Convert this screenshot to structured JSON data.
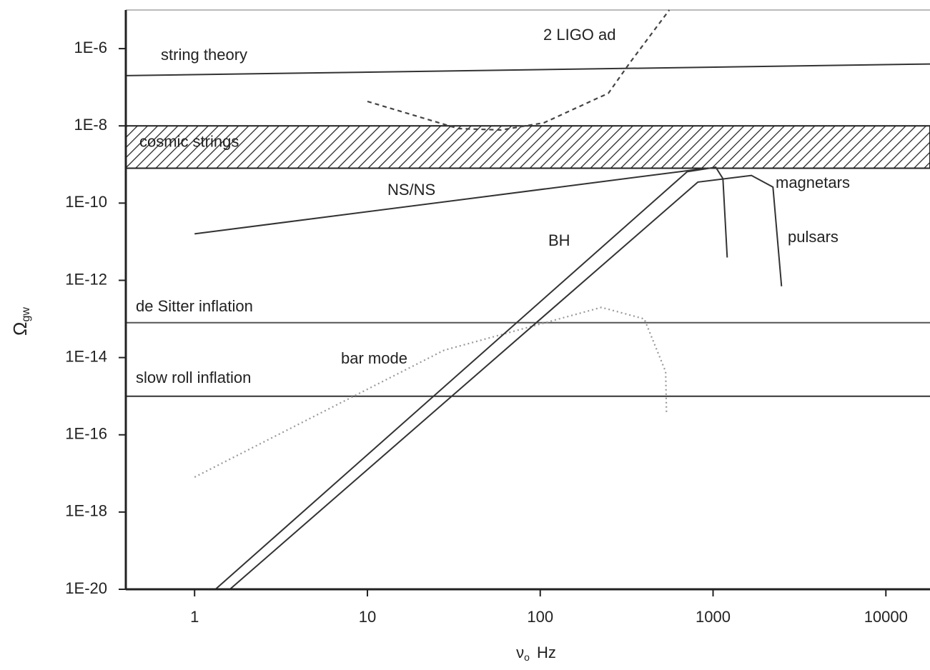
{
  "chart_data": {
    "type": "line",
    "log_x": true,
    "log_y": true,
    "xlabel": {
      "symbol": "ν",
      "subscript": "o",
      "unit": "Hz"
    },
    "ylabel": {
      "symbol": "Ω",
      "subscript": "gw"
    },
    "xlim": [
      0.4,
      18000
    ],
    "ylim": [
      1e-20,
      1e-05
    ],
    "xticks": [
      1,
      10,
      100,
      1000,
      10000
    ],
    "yticks": [
      {
        "value": 1e-20,
        "label": "1E-20"
      },
      {
        "value": 1e-18,
        "label": "1E-18"
      },
      {
        "value": 1e-16,
        "label": "1E-16"
      },
      {
        "value": 1e-14,
        "label": "1E-14"
      },
      {
        "value": 1e-12,
        "label": "1E-12"
      },
      {
        "value": 1e-10,
        "label": "1E-10"
      },
      {
        "value": 1e-08,
        "label": "1E-8"
      },
      {
        "value": 1e-06,
        "label": "1E-6"
      }
    ],
    "bands": [
      {
        "name": "cosmic strings",
        "y": [
          8e-10,
          1e-08
        ],
        "color": "#222222"
      }
    ],
    "series": [
      {
        "name": "string theory",
        "color": "#333333",
        "style": "solid",
        "x": [
          0.4,
          18000
        ],
        "values": [
          2e-07,
          4e-07
        ]
      },
      {
        "name": "2 LIGO ad",
        "color": "#444444",
        "style": "dashed",
        "x": [
          10,
          33.6,
          59.5,
          105,
          248,
          330,
          558
        ],
        "values": [
          4.3e-08,
          8.5e-09,
          7.8e-09,
          1.2e-08,
          7e-08,
          4.3e-07,
          1e-05
        ]
      },
      {
        "name": "NS/NS",
        "color": "#333333",
        "style": "solid",
        "x": [
          1,
          940
        ],
        "values": [
          1.6e-11,
          8.1e-10
        ]
      },
      {
        "name": "de Sitter inflation",
        "color": "#555555",
        "style": "solid",
        "x": [
          0.4,
          18000
        ],
        "values": [
          8e-14,
          8e-14
        ]
      },
      {
        "name": "slow roll inflation",
        "color": "#333333",
        "style": "solid",
        "x": [
          0.4,
          18000
        ],
        "values": [
          1e-15,
          1e-15
        ]
      },
      {
        "name": "bar mode",
        "color": "#999999",
        "style": "dotted",
        "x": [
          1,
          27.8,
          226,
          400,
          532,
          538
        ],
        "values": [
          8e-18,
          1.55e-14,
          2e-13,
          1e-13,
          4.3e-15,
          3.3e-16
        ]
      },
      {
        "color": "#333333",
        "style": "solid",
        "x": [
          1.32,
          708,
          1037,
          1140,
          1207
        ],
        "values": [
          1e-20,
          6.5e-10,
          8.5e-10,
          4.3e-10,
          3.9e-12
        ]
      },
      {
        "color": "#333333",
        "style": "solid",
        "x": [
          1.6,
          817,
          1668,
          2220,
          2490
        ],
        "values": [
          1e-20,
          3.5e-10,
          5.2e-10,
          2.6e-10,
          7e-13
        ]
      }
    ],
    "annotations": [
      "BH",
      "magnetars",
      "pulsars"
    ]
  }
}
